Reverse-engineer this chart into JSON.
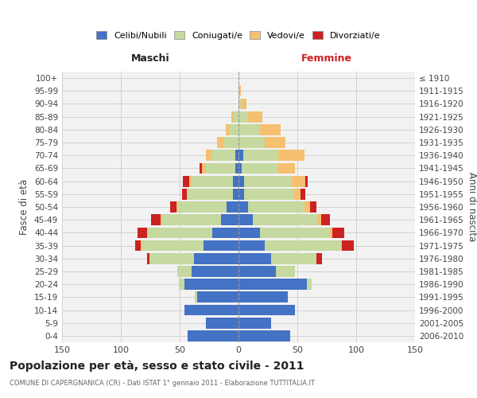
{
  "age_groups": [
    "0-4",
    "5-9",
    "10-14",
    "15-19",
    "20-24",
    "25-29",
    "30-34",
    "35-39",
    "40-44",
    "45-49",
    "50-54",
    "55-59",
    "60-64",
    "65-69",
    "70-74",
    "75-79",
    "80-84",
    "85-89",
    "90-94",
    "95-99",
    "100+"
  ],
  "birth_years": [
    "2006-2010",
    "2001-2005",
    "1996-2000",
    "1991-1995",
    "1986-1990",
    "1981-1985",
    "1976-1980",
    "1971-1975",
    "1966-1970",
    "1961-1965",
    "1956-1960",
    "1951-1955",
    "1946-1950",
    "1941-1945",
    "1936-1940",
    "1931-1935",
    "1926-1930",
    "1921-1925",
    "1916-1920",
    "1911-1915",
    "≤ 1910"
  ],
  "colors": {
    "celibi": "#4472C4",
    "coniugati": "#C5D9A0",
    "vedovi": "#F5C070",
    "divorziati": "#CC2222",
    "bg": "#F2F2F2",
    "grid": "#CCCCCC",
    "dashed": "#AAAAAA"
  },
  "maschi": {
    "celibi": [
      43,
      28,
      46,
      35,
      46,
      40,
      38,
      30,
      22,
      15,
      10,
      5,
      5,
      3,
      3,
      0,
      0,
      0,
      0,
      0,
      0
    ],
    "coniugati": [
      0,
      0,
      0,
      2,
      5,
      12,
      38,
      52,
      55,
      50,
      42,
      38,
      35,
      25,
      20,
      12,
      8,
      4,
      0,
      0,
      0
    ],
    "vedovi": [
      0,
      0,
      0,
      0,
      0,
      0,
      0,
      1,
      1,
      1,
      1,
      1,
      2,
      3,
      5,
      6,
      3,
      2,
      0,
      0,
      0
    ],
    "divorziati": [
      0,
      0,
      0,
      0,
      0,
      0,
      2,
      5,
      8,
      8,
      5,
      4,
      5,
      2,
      0,
      0,
      0,
      0,
      0,
      0,
      0
    ]
  },
  "femmine": {
    "celibi": [
      44,
      28,
      48,
      42,
      58,
      32,
      28,
      22,
      18,
      12,
      8,
      5,
      5,
      3,
      4,
      0,
      0,
      0,
      0,
      0,
      0
    ],
    "coniugati": [
      0,
      0,
      0,
      0,
      4,
      16,
      38,
      65,
      60,
      55,
      48,
      42,
      40,
      30,
      30,
      22,
      18,
      8,
      2,
      0,
      0
    ],
    "vedovi": [
      0,
      0,
      0,
      0,
      0,
      0,
      0,
      1,
      2,
      3,
      5,
      6,
      12,
      15,
      22,
      18,
      18,
      12,
      5,
      2,
      0
    ],
    "divorziati": [
      0,
      0,
      0,
      0,
      0,
      0,
      5,
      10,
      10,
      8,
      5,
      4,
      2,
      0,
      0,
      0,
      0,
      0,
      0,
      0,
      0
    ]
  },
  "xlim": 150,
  "title": "Popolazione per età, sesso e stato civile - 2011",
  "subtitle": "COMUNE DI CAPERGNANICA (CR) - Dati ISTAT 1° gennaio 2011 - Elaborazione TUTTITALIA.IT",
  "xlabel_left": "Maschi",
  "xlabel_right": "Femmine",
  "ylabel_left": "Fasce di età",
  "ylabel_right": "Anni di nascita",
  "legend_labels": [
    "Celibi/Nubili",
    "Coniugati/e",
    "Vedovi/e",
    "Divorziati/e"
  ]
}
